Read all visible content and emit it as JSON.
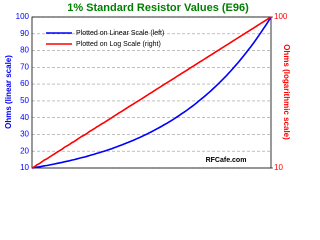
{
  "chart_data": {
    "type": "line",
    "title": "1% Standard Resistor Values (E96)",
    "ylabel": "Ohms (linear scale)",
    "y2label": "Ohms (logarithmic scale)",
    "annotation": "RFCafe.com",
    "ylim": [
      10,
      100
    ],
    "yticks": [
      10,
      20,
      30,
      40,
      50,
      60,
      70,
      80,
      90,
      100
    ],
    "y2lim": [
      10,
      100
    ],
    "y2ticks": [
      10,
      100
    ],
    "y2log": true,
    "grid": true,
    "legend": "upper-left",
    "series": [
      {
        "name": "Plotted on Linear Scale (left)",
        "color": "#0000ff",
        "values": [
          10.0,
          10.2,
          10.5,
          10.7,
          11.0,
          11.3,
          11.5,
          11.8,
          12.1,
          12.4,
          12.7,
          13.0,
          13.3,
          13.7,
          14.0,
          14.3,
          14.7,
          15.0,
          15.4,
          15.8,
          16.2,
          16.5,
          16.9,
          17.4,
          17.8,
          18.2,
          18.7,
          19.1,
          19.6,
          20.0,
          20.5,
          21.0,
          21.5,
          22.1,
          22.6,
          23.2,
          23.7,
          24.3,
          24.9,
          25.5,
          26.1,
          26.7,
          27.4,
          28.0,
          28.7,
          29.4,
          30.1,
          30.9,
          31.6,
          32.4,
          33.2,
          34.0,
          34.8,
          35.7,
          36.5,
          37.4,
          38.3,
          39.2,
          40.2,
          41.2,
          42.2,
          43.2,
          44.2,
          45.3,
          46.4,
          47.5,
          48.7,
          49.9,
          51.1,
          52.3,
          53.6,
          54.9,
          56.2,
          57.6,
          59.0,
          60.4,
          61.9,
          63.4,
          64.9,
          66.5,
          68.1,
          69.8,
          71.5,
          73.2,
          75.0,
          76.8,
          78.7,
          80.6,
          82.5,
          84.5,
          86.6,
          88.7,
          90.9,
          93.1,
          95.3,
          97.6,
          100
        ]
      },
      {
        "name": "Plotted on Log Scale (right)",
        "color": "#ff0000",
        "axis": "y2",
        "values": [
          10.0,
          10.2,
          10.5,
          10.7,
          11.0,
          11.3,
          11.5,
          11.8,
          12.1,
          12.4,
          12.7,
          13.0,
          13.3,
          13.7,
          14.0,
          14.3,
          14.7,
          15.0,
          15.4,
          15.8,
          16.2,
          16.5,
          16.9,
          17.4,
          17.8,
          18.2,
          18.7,
          19.1,
          19.6,
          20.0,
          20.5,
          21.0,
          21.5,
          22.1,
          22.6,
          23.2,
          23.7,
          24.3,
          24.9,
          25.5,
          26.1,
          26.7,
          27.4,
          28.0,
          28.7,
          29.4,
          30.1,
          30.9,
          31.6,
          32.4,
          33.2,
          34.0,
          34.8,
          35.7,
          36.5,
          37.4,
          38.3,
          39.2,
          40.2,
          41.2,
          42.2,
          43.2,
          44.2,
          45.3,
          46.4,
          47.5,
          48.7,
          49.9,
          51.1,
          52.3,
          53.6,
          54.9,
          56.2,
          57.6,
          59.0,
          60.4,
          61.9,
          63.4,
          64.9,
          66.5,
          68.1,
          69.8,
          71.5,
          73.2,
          75.0,
          76.8,
          78.7,
          80.6,
          82.5,
          84.5,
          86.6,
          88.7,
          90.9,
          93.1,
          95.3,
          97.6,
          100
        ]
      }
    ]
  }
}
